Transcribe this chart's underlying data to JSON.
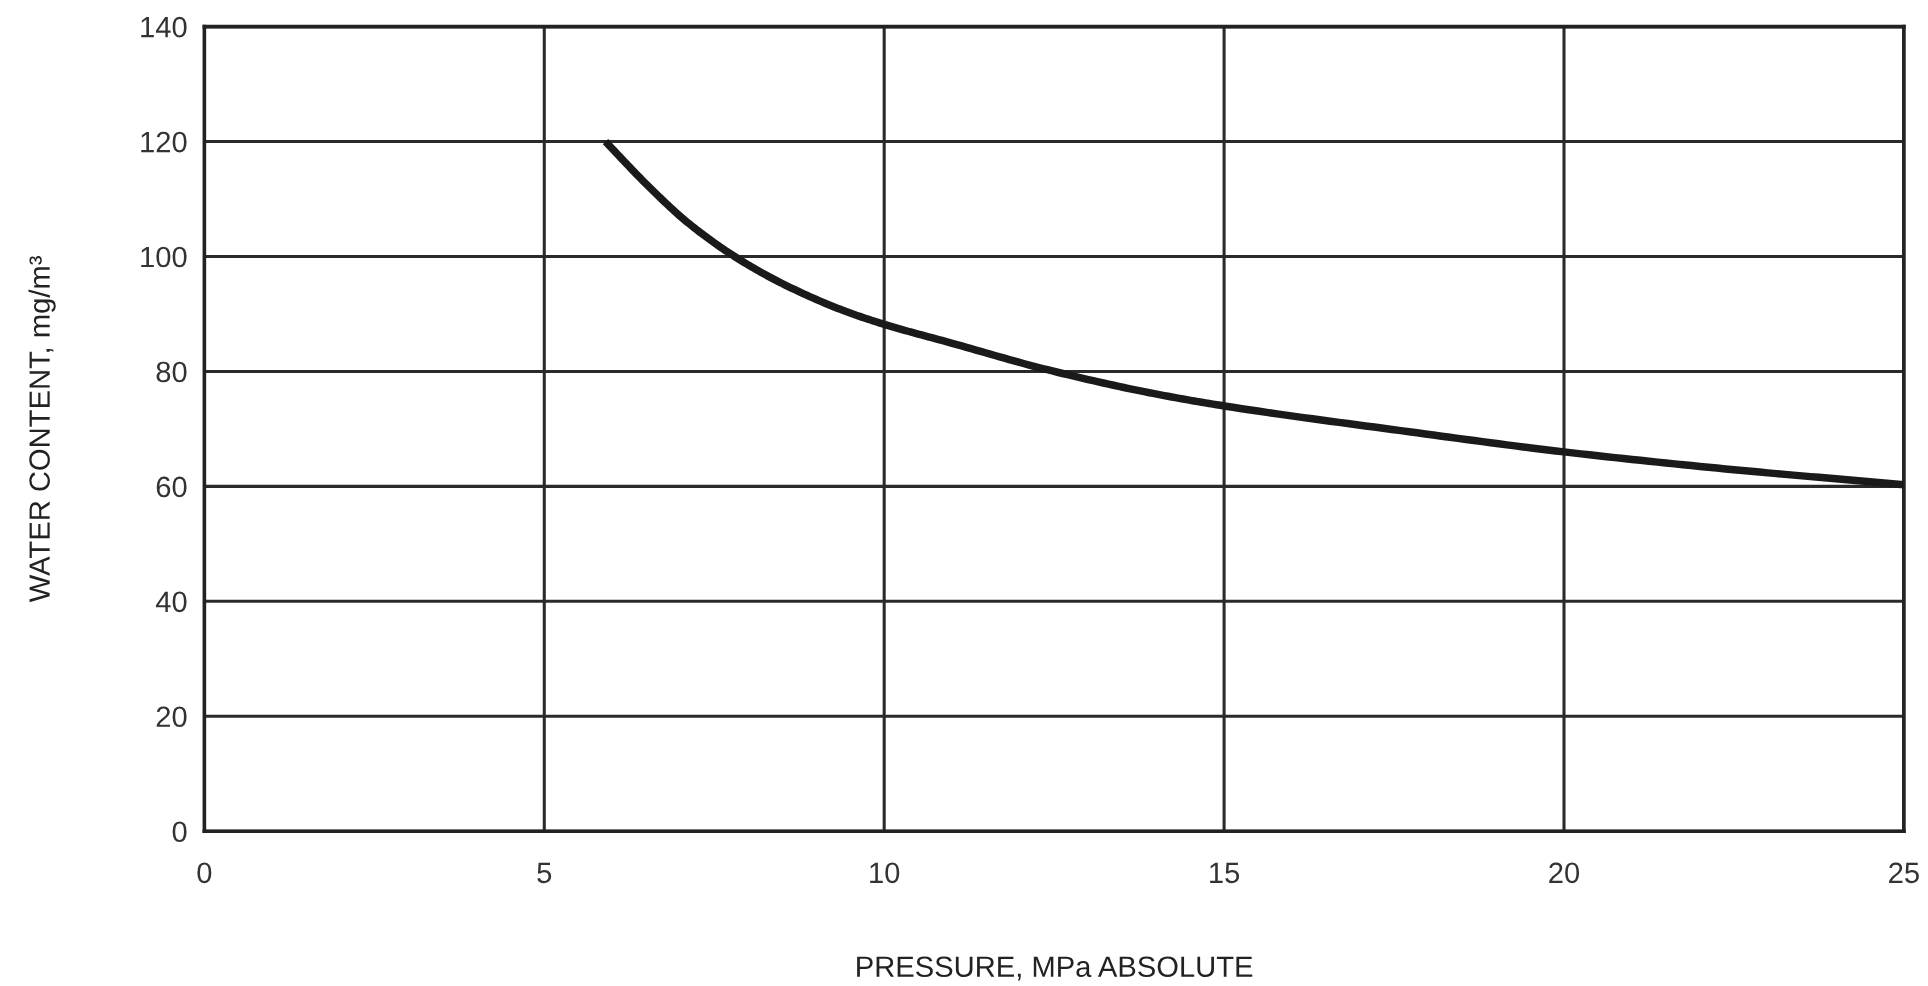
{
  "chart_data": {
    "type": "line",
    "xlabel": "PRESSURE, MPa ABSOLUTE",
    "ylabel": "WATER CONTENT, mg/m³",
    "x": [
      5.9,
      6.5,
      7.1,
      7.8,
      8.5,
      9.4,
      10,
      11,
      12.4,
      13.9,
      15,
      17.6,
      20,
      22.5,
      25
    ],
    "series": [
      {
        "color": "#1a1a1a",
        "values": [
          120,
          112.6,
          106,
          100,
          95.3,
          90.6,
          88.2,
          84.9,
          80.3,
          76.3,
          74,
          69.7,
          66,
          62.9,
          60.3
        ]
      }
    ],
    "xlim": [
      0,
      25
    ],
    "xticks": [
      0,
      5,
      10,
      15,
      20,
      25
    ],
    "ylim": [
      0,
      140
    ],
    "yticks": [
      0,
      20,
      40,
      60,
      80,
      100,
      120,
      140
    ],
    "grid": true,
    "marker": "none",
    "line_style": "solid"
  }
}
